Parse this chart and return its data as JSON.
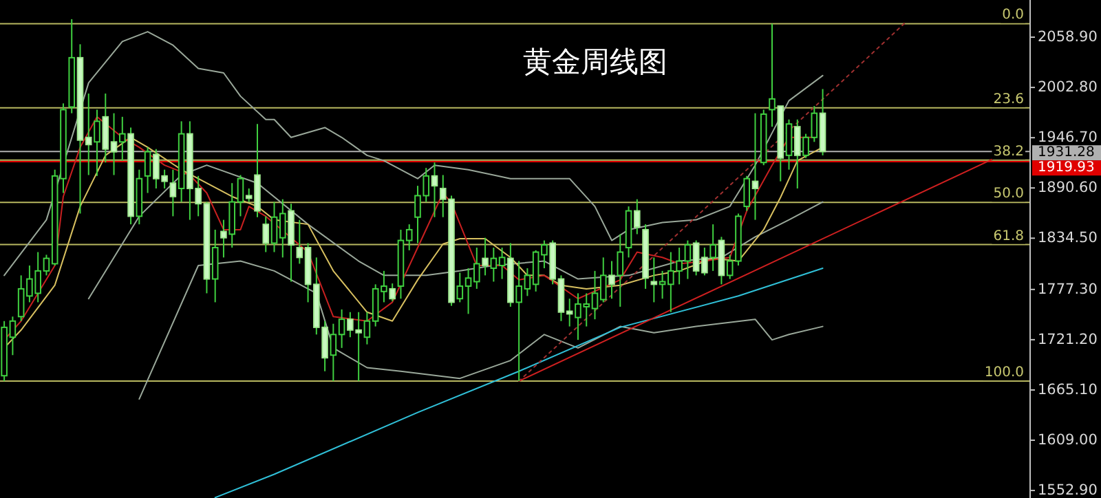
{
  "chart_data": {
    "type": "candlestick",
    "title": "黄金周线图",
    "categories": [
      null,
      null,
      null,
      null,
      null,
      null,
      null,
      null,
      null,
      null,
      null,
      null,
      null,
      null,
      null,
      null,
      null,
      null,
      null,
      null,
      null,
      null,
      null,
      null,
      null,
      null,
      null,
      null,
      null,
      null,
      null,
      null,
      null,
      null,
      null,
      null,
      null,
      null,
      null,
      null,
      null,
      null,
      null,
      null,
      null,
      null,
      null,
      null,
      null,
      null,
      null,
      null,
      null,
      null,
      null,
      null,
      null,
      null,
      null,
      null,
      null,
      null,
      null,
      null,
      null,
      null,
      null,
      null,
      null,
      null,
      null,
      null,
      null,
      null,
      null,
      null,
      null,
      null,
      null,
      null,
      null,
      null,
      null,
      null,
      null,
      null,
      null,
      null,
      null,
      null,
      null,
      null,
      null,
      null,
      null,
      null,
      null,
      null,
      null,
      null,
      null,
      null,
      null,
      null,
      null,
      null,
      null,
      null,
      null,
      null,
      null,
      null,
      null,
      null,
      null,
      null,
      null,
      null,
      null,
      null,
      null,
      null
    ],
    "ohlc": [
      [
        1681,
        1742,
        1675,
        1735
      ],
      [
        1724,
        1747,
        1704,
        1742
      ],
      [
        1747,
        1793,
        1742,
        1778
      ],
      [
        1770,
        1804,
        1763,
        1789
      ],
      [
        1773,
        1819,
        1763,
        1798
      ],
      [
        1798,
        1816,
        1793,
        1812
      ],
      [
        1806,
        1911,
        1804,
        1904
      ],
      [
        1901,
        1985,
        1885,
        1978
      ],
      [
        1981,
        2079,
        1974,
        2036
      ],
      [
        2036,
        2051,
        1862,
        1944
      ],
      [
        1947,
        1996,
        1905,
        1939
      ],
      [
        1942,
        1978,
        1904,
        1965
      ],
      [
        1970,
        1996,
        1919,
        1934
      ],
      [
        1942,
        1974,
        1905,
        1931
      ],
      [
        1942,
        1970,
        1921,
        1951
      ],
      [
        1951,
        1958,
        1850,
        1859
      ],
      [
        1859,
        1911,
        1850,
        1901
      ],
      [
        1904,
        1936,
        1885,
        1931
      ],
      [
        1928,
        1934,
        1890,
        1901
      ],
      [
        1904,
        1911,
        1890,
        1898
      ],
      [
        1896,
        1911,
        1859,
        1881
      ],
      [
        1890,
        1965,
        1875,
        1951
      ],
      [
        1951,
        1965,
        1855,
        1890
      ],
      [
        1890,
        1904,
        1859,
        1873
      ],
      [
        1873,
        1875,
        1773,
        1789
      ],
      [
        1789,
        1844,
        1763,
        1824
      ],
      [
        1842,
        1855,
        1813,
        1835
      ],
      [
        1839,
        1896,
        1824,
        1875
      ],
      [
        1875,
        1905,
        1859,
        1901
      ],
      [
        1882,
        1890,
        1875,
        1879
      ],
      [
        1905,
        1962,
        1858,
        1865
      ],
      [
        1850,
        1859,
        1819,
        1829
      ],
      [
        1829,
        1875,
        1819,
        1858
      ],
      [
        1835,
        1878,
        1813,
        1862
      ],
      [
        1865,
        1873,
        1786,
        1827
      ],
      [
        1824,
        1855,
        1806,
        1813
      ],
      [
        1824,
        1829,
        1763,
        1783
      ],
      [
        1783,
        1813,
        1727,
        1735
      ],
      [
        1735,
        1742,
        1686,
        1701
      ],
      [
        1704,
        1739,
        1675,
        1727
      ],
      [
        1727,
        1755,
        1712,
        1744
      ],
      [
        1744,
        1752,
        1724,
        1732
      ],
      [
        1732,
        1752,
        1675,
        1729
      ],
      [
        1724,
        1752,
        1716,
        1742
      ],
      [
        1742,
        1783,
        1736,
        1778
      ],
      [
        1775,
        1798,
        1763,
        1781
      ],
      [
        1778,
        1784,
        1764,
        1767
      ],
      [
        1781,
        1844,
        1767,
        1832
      ],
      [
        1832,
        1850,
        1821,
        1844
      ],
      [
        1858,
        1893,
        1829,
        1882
      ],
      [
        1882,
        1913,
        1875,
        1904
      ],
      [
        1904,
        1919,
        1858,
        1893
      ],
      [
        1890,
        1905,
        1858,
        1878
      ],
      [
        1878,
        1882,
        1759,
        1763
      ],
      [
        1767,
        1796,
        1763,
        1781
      ],
      [
        1781,
        1801,
        1750,
        1790
      ],
      [
        1786,
        1824,
        1778,
        1806
      ],
      [
        1812,
        1835,
        1793,
        1804
      ],
      [
        1801,
        1824,
        1786,
        1812
      ],
      [
        1804,
        1824,
        1789,
        1813
      ],
      [
        1812,
        1829,
        1758,
        1763
      ],
      [
        1763,
        1809,
        1675,
        1781
      ],
      [
        1778,
        1801,
        1770,
        1793
      ],
      [
        1783,
        1821,
        1775,
        1819
      ],
      [
        1816,
        1832,
        1801,
        1827
      ],
      [
        1829,
        1832,
        1783,
        1789
      ],
      [
        1789,
        1793,
        1742,
        1752
      ],
      [
        1753,
        1767,
        1736,
        1750
      ],
      [
        1746,
        1773,
        1721,
        1761
      ],
      [
        1758,
        1773,
        1736,
        1761
      ],
      [
        1756,
        1798,
        1744,
        1773
      ],
      [
        1766,
        1813,
        1763,
        1793
      ],
      [
        1793,
        1809,
        1767,
        1783
      ],
      [
        1793,
        1839,
        1758,
        1819
      ],
      [
        1824,
        1870,
        1813,
        1865
      ],
      [
        1865,
        1878,
        1839,
        1847
      ],
      [
        1844,
        1850,
        1778,
        1790
      ],
      [
        1786,
        1813,
        1763,
        1783
      ],
      [
        1783,
        1798,
        1767,
        1786
      ],
      [
        1783,
        1819,
        1752,
        1798
      ],
      [
        1798,
        1824,
        1783,
        1809
      ],
      [
        1809,
        1832,
        1789,
        1827
      ],
      [
        1829,
        1832,
        1793,
        1798
      ],
      [
        1813,
        1824,
        1793,
        1796
      ],
      [
        1813,
        1850,
        1798,
        1827
      ],
      [
        1832,
        1836,
        1783,
        1793
      ],
      [
        1793,
        1816,
        1789,
        1809
      ],
      [
        1809,
        1862,
        1804,
        1859
      ],
      [
        1870,
        1904,
        1865,
        1901
      ],
      [
        1898,
        1974,
        1855,
        1890
      ],
      [
        1919,
        1978,
        1916,
        1973
      ],
      [
        1978,
        2074,
        1959,
        1990
      ],
      [
        1982,
        1982,
        1898,
        1924
      ],
      [
        1927,
        1967,
        1911,
        1962
      ],
      [
        1959,
        1967,
        1890,
        1927
      ],
      [
        1927,
        1951,
        1924,
        1947
      ],
      [
        1947,
        1982,
        1942,
        1974
      ],
      [
        1974,
        2001,
        1927,
        1931.28
      ],
      null,
      null,
      null,
      null,
      null,
      null,
      null,
      null,
      null,
      null,
      null,
      null,
      null,
      null,
      null,
      null,
      null,
      null,
      null,
      null,
      null,
      null,
      null,
      null
    ],
    "series": [
      {
        "type": "line",
        "color": "#9aa89a",
        "values": [
          1793,
          null,
          null,
          null,
          null,
          1855,
          null,
          null,
          null,
          null,
          2008,
          null,
          null,
          null,
          2054,
          null,
          null,
          2065,
          null,
          null,
          2050,
          null,
          null,
          2024,
          null,
          null,
          2019,
          null,
          1993,
          null,
          null,
          1967,
          1967,
          null,
          1947,
          null,
          null,
          null,
          1958,
          null,
          1947,
          null,
          null,
          1927,
          null,
          1921,
          null,
          null,
          null,
          1901,
          null,
          1916,
          null,
          null,
          null,
          1911,
          null,
          null,
          null,
          null,
          1901,
          null,
          null,
          null,
          null,
          null,
          null,
          1901,
          null,
          null,
          1870,
          null,
          1832,
          null,
          1844,
          null,
          null,
          null,
          1852,
          null,
          null,
          null,
          1855,
          null,
          null,
          null,
          1870,
          null,
          null,
          1916,
          null,
          null,
          null,
          1988,
          null,
          null,
          null,
          2016,
          null,
          null,
          null,
          null,
          null,
          null,
          null,
          null,
          null,
          null,
          null,
          null,
          null,
          null,
          null,
          null,
          null,
          null,
          null,
          null,
          null,
          null,
          null,
          null
        ]
      },
      {
        "type": "line",
        "color": "#9aa89a",
        "values": [
          null,
          null,
          null,
          null,
          null,
          null,
          null,
          null,
          null,
          null,
          1767,
          null,
          null,
          null,
          null,
          null,
          1859,
          null,
          null,
          null,
          null,
          1905,
          null,
          null,
          1916,
          null,
          null,
          null,
          null,
          null,
          1896,
          null,
          null,
          null,
          null,
          null,
          1850,
          null,
          null,
          null,
          null,
          null,
          1809,
          null,
          null,
          1793,
          null,
          null,
          null,
          null,
          1793,
          null,
          null,
          null,
          1798,
          null,
          null,
          null,
          1804,
          null,
          null,
          null,
          null,
          null,
          1809,
          null,
          null,
          null,
          1789,
          null,
          null,
          null,
          null,
          null,
          1793,
          null,
          null,
          null,
          null,
          null,
          1809,
          null,
          null,
          null,
          null,
          1813,
          null,
          null,
          null,
          1836,
          null,
          null,
          null,
          1855,
          null,
          null,
          null,
          1875,
          null,
          null,
          null,
          null,
          null,
          null,
          null,
          null,
          null,
          null,
          null,
          null,
          null,
          null,
          null,
          null,
          null,
          null,
          null,
          null,
          null,
          null,
          null,
          null
        ]
      },
      {
        "type": "line",
        "color": "#9aa89a",
        "values": [
          null,
          null,
          null,
          null,
          null,
          null,
          null,
          null,
          null,
          null,
          null,
          null,
          null,
          null,
          null,
          null,
          1655,
          null,
          null,
          null,
          null,
          null,
          null,
          1804,
          null,
          null,
          null,
          null,
          1809,
          null,
          null,
          null,
          1798,
          null,
          null,
          null,
          null,
          1773,
          null,
          1712,
          null,
          null,
          null,
          1690,
          null,
          null,
          null,
          1686,
          null,
          null,
          null,
          null,
          null,
          null,
          1678,
          null,
          null,
          null,
          null,
          null,
          1698,
          null,
          null,
          null,
          1727,
          null,
          null,
          null,
          1712,
          null,
          null,
          null,
          null,
          1736,
          null,
          null,
          null,
          1729,
          null,
          null,
          null,
          null,
          1736,
          null,
          null,
          null,
          null,
          null,
          null,
          1744,
          null,
          1721,
          null,
          1727,
          null,
          null,
          null,
          1736,
          null,
          null,
          null,
          null,
          null,
          null,
          null,
          null,
          null,
          null,
          null,
          null,
          null,
          null,
          null,
          null,
          null,
          null,
          null,
          null,
          null,
          null,
          null,
          null
        ]
      },
      {
        "type": "line",
        "color": "#d8c060",
        "values": [
          1712,
          null,
          1732,
          null,
          null,
          null,
          1782,
          null,
          null,
          1870,
          null,
          null,
          1927,
          null,
          null,
          1947,
          null,
          1936,
          null,
          null,
          null,
          1911,
          null,
          null,
          1896,
          null,
          null,
          1881,
          null,
          null,
          1870,
          null,
          1855,
          null,
          null,
          null,
          1850,
          null,
          null,
          1798,
          null,
          null,
          null,
          1752,
          null,
          null,
          1742,
          null,
          null,
          1788,
          null,
          null,
          1828,
          null,
          1834,
          null,
          null,
          1834,
          null,
          null,
          1813,
          null,
          1793,
          null,
          1793,
          null,
          1782,
          null,
          null,
          1778,
          null,
          null,
          null,
          1782,
          null,
          null,
          null,
          1793,
          null,
          null,
          1798,
          null,
          null,
          null,
          1812,
          null,
          null,
          1809,
          null,
          null,
          1844,
          null,
          1880,
          null,
          1921,
          null,
          null,
          1936,
          null,
          null,
          null,
          null,
          null,
          null,
          null,
          null,
          null,
          null,
          null,
          null,
          null,
          null,
          null,
          null,
          null,
          null,
          null,
          null,
          null,
          null,
          null,
          null
        ]
      },
      {
        "type": "line",
        "color": "#c82020",
        "values": [
          1721,
          null,
          1742,
          null,
          null,
          null,
          1804,
          1881,
          null,
          1936,
          null,
          1970,
          null,
          null,
          1947,
          null,
          1936,
          null,
          null,
          1916,
          null,
          null,
          1905,
          null,
          1885,
          null,
          1844,
          null,
          1844,
          1870,
          null,
          1859,
          null,
          null,
          null,
          null,
          1819,
          null,
          null,
          1747,
          null,
          null,
          null,
          1742,
          null,
          null,
          1763,
          null,
          null,
          1824,
          null,
          null,
          1885,
          1874,
          null,
          null,
          1804,
          null,
          null,
          1804,
          null,
          1788,
          null,
          null,
          1793,
          null,
          null,
          null,
          1767,
          null,
          null,
          null,
          null,
          1788,
          null,
          1819,
          null,
          null,
          1813,
          null,
          1806,
          null,
          null,
          1809,
          null,
          null,
          1813,
          null,
          1865,
          null,
          null,
          1916,
          null,
          1947,
          null,
          null,
          1947,
          null,
          null,
          null,
          null,
          null,
          null,
          null,
          null,
          null,
          null,
          null,
          null,
          null,
          null,
          null,
          null,
          null,
          null,
          null,
          null,
          null,
          null,
          null,
          null,
          null
        ]
      },
      {
        "type": "line",
        "color": "#30c0d8",
        "values": [
          null,
          null,
          null,
          null,
          null,
          null,
          null,
          null,
          null,
          null,
          null,
          null,
          null,
          null,
          null,
          null,
          null,
          null,
          null,
          null,
          null,
          null,
          null,
          null,
          null,
          1545,
          null,
          null,
          null,
          null,
          null,
          null,
          1571,
          null,
          null,
          null,
          null,
          null,
          null,
          null,
          null,
          null,
          null,
          null,
          null,
          null,
          null,
          null,
          null,
          1640,
          null,
          null,
          null,
          null,
          null,
          null,
          null,
          null,
          null,
          null,
          null,
          1686,
          null,
          null,
          null,
          null,
          null,
          null,
          null,
          null,
          null,
          null,
          null,
          1735,
          null,
          null,
          null,
          null,
          null,
          null,
          null,
          null,
          null,
          null,
          null,
          null,
          null,
          1770,
          null,
          null,
          null,
          null,
          null,
          null,
          null,
          null,
          null,
          1801,
          null,
          null,
          null,
          null,
          null,
          null,
          null,
          null,
          null,
          null,
          null,
          null,
          null,
          null,
          null,
          null,
          null,
          null,
          null,
          null,
          null,
          null,
          null,
          null
        ]
      },
      {
        "type": "line",
        "color": "#d02020",
        "values": [
          null,
          null,
          null,
          null,
          null,
          null,
          null,
          null,
          null,
          null,
          null,
          null,
          null,
          null,
          null,
          null,
          null,
          null,
          null,
          null,
          null,
          null,
          null,
          null,
          null,
          null,
          null,
          null,
          null,
          null,
          null,
          null,
          null,
          null,
          null,
          null,
          null,
          null,
          null,
          null,
          null,
          null,
          null,
          null,
          null,
          null,
          null,
          null,
          null,
          null,
          null,
          null,
          null,
          null,
          null,
          null,
          null,
          null,
          null,
          null,
          null,
          1675,
          null,
          null,
          null,
          null,
          null,
          null,
          null,
          null,
          null,
          null,
          null,
          null,
          null,
          null,
          null,
          null,
          null,
          null,
          null,
          null,
          null,
          null,
          null,
          null,
          null,
          null,
          null,
          null,
          null,
          null,
          null,
          null,
          null,
          null,
          null,
          null,
          null,
          null,
          null,
          null,
          null,
          null,
          null,
          null,
          null,
          null,
          null,
          null,
          null,
          null,
          null,
          null,
          null,
          null,
          null,
          null,
          null,
          1931,
          null,
          null
        ]
      },
      {
        "type": "line",
        "color": "#a03030",
        "line_style": "dotted",
        "values": [
          null,
          null,
          null,
          null,
          null,
          null,
          null,
          null,
          null,
          null,
          null,
          null,
          null,
          null,
          null,
          null,
          null,
          null,
          null,
          null,
          null,
          null,
          null,
          null,
          null,
          null,
          null,
          null,
          null,
          null,
          null,
          null,
          null,
          null,
          null,
          null,
          null,
          null,
          null,
          null,
          null,
          null,
          null,
          null,
          null,
          null,
          null,
          null,
          null,
          null,
          null,
          null,
          null,
          null,
          null,
          null,
          null,
          null,
          null,
          null,
          null,
          1675,
          null,
          null,
          null,
          null,
          null,
          null,
          null,
          null,
          null,
          null,
          null,
          null,
          null,
          null,
          null,
          null,
          null,
          null,
          null,
          null,
          null,
          null,
          null,
          null,
          null,
          null,
          null,
          null,
          null,
          null,
          null,
          null,
          null,
          null,
          null,
          null,
          null,
          null,
          null,
          null,
          null,
          null,
          null,
          null,
          null,
          2077,
          null,
          null,
          null,
          null,
          null,
          null,
          null,
          null,
          null,
          null,
          null,
          null,
          null,
          null
        ]
      }
    ],
    "ylim": [
      1544.5,
      2100.4
    ],
    "yticks": [
      {
        "value": 2058.9,
        "label": "2058.90"
      },
      {
        "value": 2002.8,
        "label": "2002.80"
      },
      {
        "value": 1946.7,
        "label": "1946.70"
      },
      {
        "value": 1890.6,
        "label": "1890.60"
      },
      {
        "value": 1834.5,
        "label": "1834.50"
      },
      {
        "value": 1777.3,
        "label": "1777.30"
      },
      {
        "value": 1721.2,
        "label": "1721.20"
      },
      {
        "value": 1665.1,
        "label": "1665.10"
      },
      {
        "value": 1609,
        "label": "1609.00"
      },
      {
        "value": 1552.9,
        "label": "1552.90"
      }
    ],
    "tick_labels": "y",
    "ref_lines": [
      {
        "axis": "y",
        "value": 2074,
        "color": "#b8b860"
      },
      {
        "axis": "y",
        "value": 1980,
        "color": "#b8b860"
      },
      {
        "axis": "y",
        "value": 1921.6,
        "color": "#b8b860"
      },
      {
        "axis": "y",
        "value": 1874.5,
        "color": "#b8b860"
      },
      {
        "axis": "y",
        "value": 1827.4,
        "color": "#b8b860"
      },
      {
        "axis": "y",
        "value": 1675,
        "color": "#b8b860"
      },
      {
        "axis": "y",
        "value": 1931.28,
        "label": "1931.28",
        "color": "#b0b0b0"
      },
      {
        "axis": "y",
        "value": 1919.93,
        "label": "1919.93",
        "color": "#e00000"
      }
    ],
    "annotations": [
      {
        "text": "0.0",
        "y": 2074
      },
      {
        "text": "23.6",
        "y": 1980
      },
      {
        "text": "38.2",
        "y": 1921.6
      },
      {
        "text": "50.0",
        "y": 1874.5
      },
      {
        "text": "61.8",
        "y": 1827.4
      },
      {
        "text": "100.0",
        "y": 1675
      }
    ]
  }
}
